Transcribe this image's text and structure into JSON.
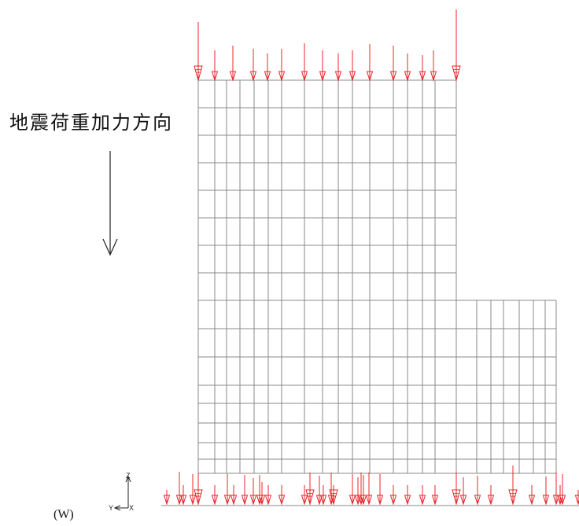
{
  "annotations": {
    "load_direction_label": "地震荷重加力方向",
    "view_label": "(W)"
  },
  "axes_triad": {
    "vertical_axis": "Z",
    "left_axis": "Y",
    "right_axis": "X"
  },
  "colors": {
    "grid": "#8a8a8a",
    "load_arrow": "#e8242a",
    "direction_arrow": "#222222"
  },
  "icons": {
    "direction_arrow": "arrow-down-icon",
    "load_arrow": "load-arrow-icon",
    "axis_triad": "axis-triad-icon"
  }
}
